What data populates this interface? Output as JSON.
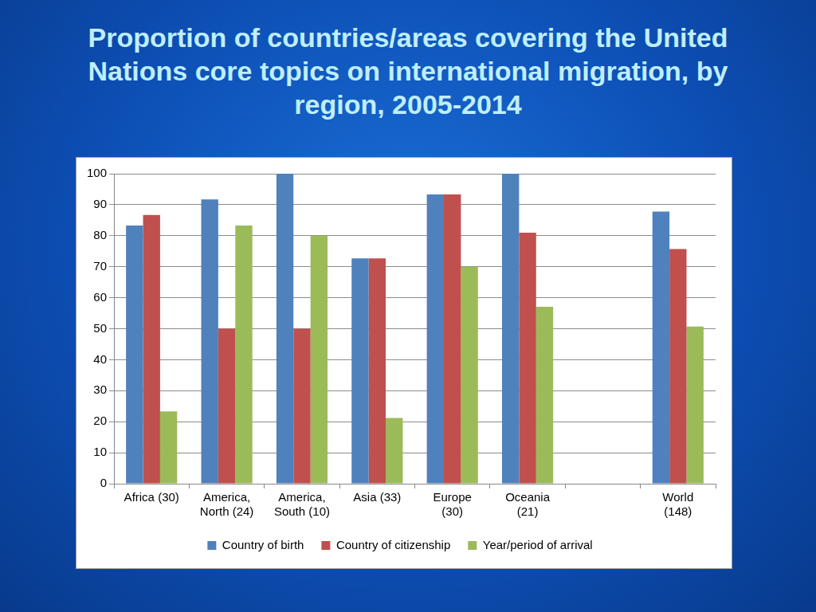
{
  "chart_data": {
    "type": "bar",
    "title": "Proportion of countries/areas covering the United Nations core topics on international migration, by region, 2005-2014",
    "categories": [
      "Africa (30)",
      [
        "America,",
        "North (24)"
      ],
      [
        "America,",
        "South (10)"
      ],
      "Asia (33)",
      [
        "Europe",
        "(30)"
      ],
      [
        "Oceania",
        "(21)"
      ],
      null,
      [
        "World",
        "(148)"
      ]
    ],
    "series": [
      {
        "name": "Country of birth",
        "color": "#4f81bd",
        "values": [
          83.3,
          91.7,
          100,
          72.7,
          93.3,
          100,
          null,
          87.8
        ]
      },
      {
        "name": "Country of citizenship",
        "color": "#c0504d",
        "values": [
          86.7,
          50,
          50,
          72.7,
          93.3,
          81,
          null,
          75.7
        ]
      },
      {
        "name": "Year/period of arrival",
        "color": "#9bbb59",
        "values": [
          23.3,
          83.3,
          80,
          21.2,
          70,
          57.1,
          null,
          50.7
        ]
      }
    ],
    "ylim": [
      0,
      100
    ],
    "yticks": [
      0,
      10,
      20,
      30,
      40,
      50,
      60,
      70,
      80,
      90,
      100
    ],
    "grid": true,
    "legend": "bottom"
  }
}
